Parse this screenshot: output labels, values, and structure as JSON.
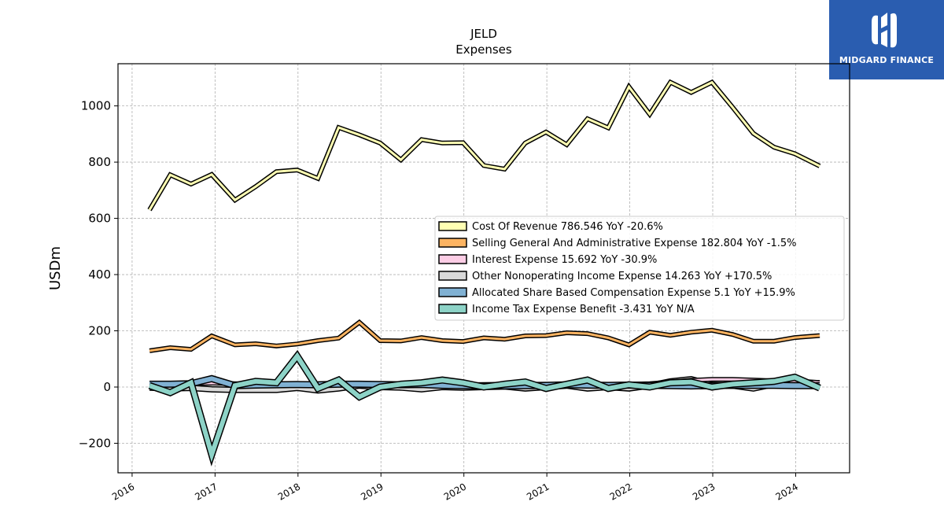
{
  "brand": {
    "name": "MIDGARD FINANCE"
  },
  "chart_data": {
    "type": "line",
    "title": "JELD",
    "subtitle": "Expenses",
    "ylabel": "USDm",
    "xlabel": "",
    "ylim": [
      -305,
      1150
    ],
    "xlim": [
      2015.83,
      2024.65
    ],
    "yticks": [
      -200,
      0,
      200,
      400,
      600,
      800,
      1000
    ],
    "ytick_labels": [
      "−200",
      "0",
      "200",
      "400",
      "600",
      "800",
      "1000"
    ],
    "xticks": [
      2016,
      2017,
      2018,
      2019,
      2020,
      2021,
      2022,
      2023,
      2024
    ],
    "xtick_labels": [
      "2016",
      "2017",
      "2018",
      "2019",
      "2020",
      "2021",
      "2022",
      "2023",
      "2024"
    ],
    "grid": true,
    "legend_position": "center-right",
    "x": [
      2016.21,
      2016.46,
      2016.71,
      2016.96,
      2017.24,
      2017.49,
      2017.74,
      2017.99,
      2018.24,
      2018.49,
      2018.74,
      2018.99,
      2019.24,
      2019.49,
      2019.74,
      2019.99,
      2020.24,
      2020.49,
      2020.74,
      2020.99,
      2021.24,
      2021.49,
      2021.74,
      2021.99,
      2022.24,
      2022.49,
      2022.74,
      2022.99,
      2023.24,
      2023.49,
      2023.74,
      2023.99,
      2024.29
    ],
    "series": [
      {
        "name": "Cost Of Revenue",
        "legend": "Cost Of Revenue  786.546 YoY -20.6%",
        "color": "#ffffb3",
        "values": [
          630,
          755,
          722,
          756,
          665,
          713,
          766,
          772,
          742,
          923,
          897,
          868,
          808,
          880,
          868,
          869,
          788,
          775,
          868,
          907,
          862,
          954,
          922,
          1068,
          970,
          1084,
          1048,
          1084,
          995,
          902,
          853,
          830,
          786
        ]
      },
      {
        "name": "Selling General And Administrative Expense",
        "legend": "Selling General And Administrative Expense  182.804 YoY -1.5%",
        "color": "#fdb462",
        "values": [
          129,
          140,
          134,
          182,
          150,
          154,
          146,
          153,
          165,
          174,
          230,
          165,
          164,
          176,
          165,
          162,
          175,
          170,
          182,
          183,
          193,
          190,
          175,
          150,
          195,
          184,
          195,
          202,
          187,
          163,
          163,
          176,
          183
        ]
      },
      {
        "name": "Interest Expense",
        "legend": "Interest Expense  15.692 YoY -30.9%",
        "color": "#fccde5",
        "values": [
          8,
          10,
          12,
          14,
          12,
          11,
          11,
          12,
          10,
          9,
          10,
          9,
          9,
          8,
          8,
          8,
          9,
          10,
          10,
          10,
          9,
          9,
          9,
          10,
          12,
          18,
          24,
          27,
          27,
          25,
          22,
          22,
          16
        ]
      },
      {
        "name": "Other Nonoperating Income Expense",
        "legend": "Other Nonoperating Income Expense  14.263 YoY +170.5%",
        "color": "#d9d9d9",
        "values": [
          -2,
          -5,
          -3,
          -8,
          -10,
          -10,
          -10,
          -3,
          -12,
          -5,
          5,
          0,
          -2,
          -8,
          0,
          -2,
          0,
          2,
          -5,
          0,
          5,
          -5,
          0,
          -5,
          5,
          20,
          28,
          8,
          5,
          -5,
          10,
          5,
          14
        ]
      },
      {
        "name": "Allocated Share Based Compensation Expense",
        "legend": "Allocated Share Based Compensation Expense  5.1 YoY +15.9%",
        "color": "#80b1d3",
        "values": [
          10,
          10,
          12,
          30,
          5,
          7,
          8,
          9,
          8,
          10,
          10,
          9,
          8,
          9,
          6,
          5,
          4,
          4,
          5,
          6,
          8,
          7,
          6,
          7,
          6,
          5,
          4,
          5,
          6,
          6,
          6,
          5,
          5
        ]
      },
      {
        "name": "Income Tax Expense Benefit",
        "legend": "Income Tax Expense Benefit  -3.431 YoY N/A",
        "color": "#8dd3c7",
        "values": [
          5,
          -20,
          15,
          -240,
          5,
          20,
          15,
          110,
          -5,
          25,
          -35,
          0,
          10,
          15,
          25,
          15,
          0,
          10,
          18,
          -5,
          10,
          25,
          -5,
          8,
          0,
          15,
          18,
          0,
          10,
          15,
          20,
          35,
          -3.431
        ]
      }
    ]
  }
}
